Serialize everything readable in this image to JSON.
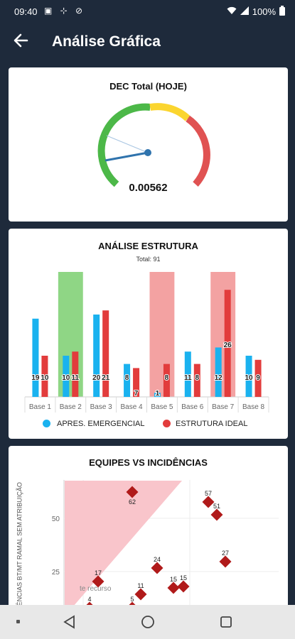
{
  "status": {
    "time": "09:40",
    "battery": "100%"
  },
  "appbar": {
    "title": "Análise Gráfica"
  },
  "gauge": {
    "title": "DEC Total (HOJE)",
    "value_label": "0.00562",
    "colors": {
      "green": "#4cb848",
      "yellow": "#fbd52f",
      "red": "#e05252",
      "needle": "#2f73ad"
    }
  },
  "structure": {
    "title": "ANÁLISE ESTRUTURA",
    "total_label": "Total: 91",
    "legend": [
      {
        "label": "APRES. EMERGENCIAL",
        "color": "#1ab2ef"
      },
      {
        "label": "ESTRUTURA IDEAL",
        "color": "#e23c3c"
      }
    ]
  },
  "chart_data": [
    {
      "type": "bar",
      "title": "ANÁLISE ESTRUTURA",
      "subtitle": "Total: 91",
      "categories": [
        "Base 1",
        "Base 2",
        "Base 3",
        "Base 4",
        "Base 5",
        "Base 6",
        "Base 7",
        "Base 8"
      ],
      "series": [
        {
          "name": "APRES. EMERGENCIAL",
          "values": [
            19,
            10,
            20,
            8,
            1,
            11,
            12,
            10
          ],
          "color": "#1ab2ef"
        },
        {
          "name": "ESTRUTURA IDEAL",
          "values": [
            10,
            11,
            21,
            7,
            8,
            8,
            26,
            9
          ],
          "color": "#e23c3c"
        }
      ],
      "highlights": [
        {
          "category": "Base 2",
          "color": "#8fd685"
        },
        {
          "category": "Base 5",
          "color": "#f3a2a2"
        },
        {
          "category": "Base 7",
          "color": "#f3a2a2"
        }
      ],
      "ylim": [
        0,
        30
      ],
      "legend": "bottom"
    },
    {
      "type": "scatter",
      "title": "EQUIPES VS INCIDÊNCIAS",
      "ylabel": "INCIDÊNCIAS BT/MT RAMAL SEM ATRIBUIÇÃO",
      "yticks": [
        25,
        50
      ],
      "points": [
        {
          "x": 1.0,
          "y": 62,
          "label": "62"
        },
        {
          "x": 0.4,
          "y": 17,
          "label": "17"
        },
        {
          "x": 1.2,
          "y": 11,
          "label": "11"
        },
        {
          "x": 1.5,
          "y": 24,
          "label": "24"
        },
        {
          "x": 2.2,
          "y": 57,
          "label": "57"
        },
        {
          "x": 2.3,
          "y": 51,
          "label": "51"
        },
        {
          "x": 2.4,
          "y": 27,
          "label": "27"
        },
        {
          "x": 1.8,
          "y": 15,
          "label": "15"
        },
        {
          "x": 1.9,
          "y": 15,
          "label": "15"
        },
        {
          "x": 1.0,
          "y": 5,
          "label": "5"
        },
        {
          "x": 0.2,
          "y": 4,
          "label": "4"
        }
      ],
      "region_annotation": "te recurso"
    }
  ],
  "scatter": {
    "title": "EQUIPES VS INCIDÊNCIAS",
    "ylabel": "INCIDÊNCIAS BT/MT RAMAL SEM ATRIBUIÇÃO"
  }
}
